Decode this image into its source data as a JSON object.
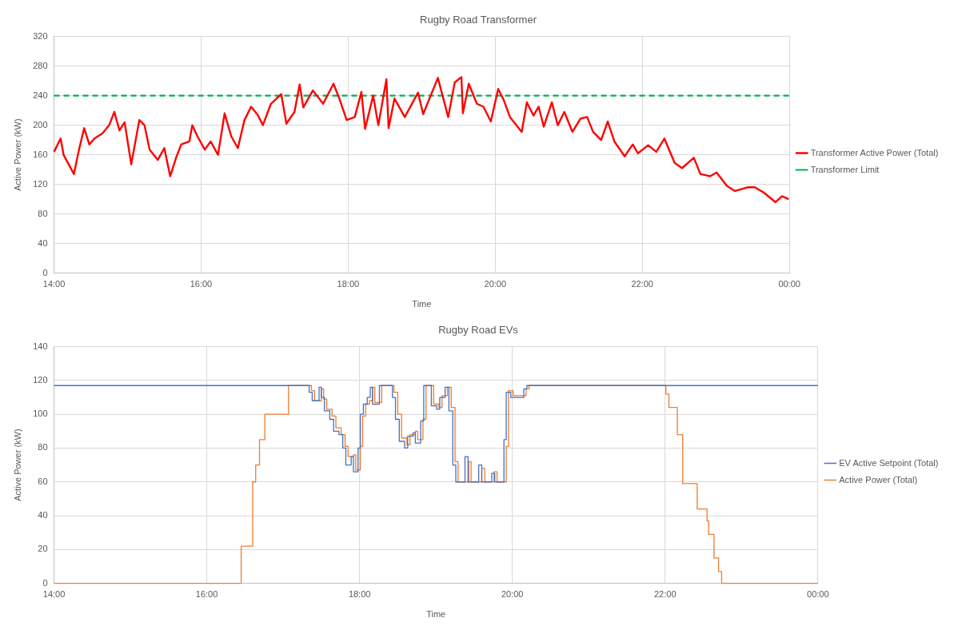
{
  "chart_data": [
    {
      "type": "line",
      "title": "Rugby Road Transformer",
      "xlabel": "Time",
      "ylabel": "Active Power (kW)",
      "xlim": [
        14,
        24
      ],
      "xticks": [
        {
          "value": 14,
          "label": "14:00"
        },
        {
          "value": 16,
          "label": "16:00"
        },
        {
          "value": 18,
          "label": "18:00"
        },
        {
          "value": 20,
          "label": "20:00"
        },
        {
          "value": 22,
          "label": "22:00"
        },
        {
          "value": 24,
          "label": "00:00"
        }
      ],
      "ylim": [
        0,
        320
      ],
      "yticks": [
        0,
        40,
        80,
        120,
        160,
        200,
        240,
        280,
        320
      ],
      "grid": true,
      "legend": "right",
      "marker": "none",
      "series": [
        {
          "name": "Transformer Active Power (Total)",
          "color": "#ff0000",
          "line_style": "solid",
          "x": [
            14.0,
            14.09,
            14.13,
            14.2,
            14.27,
            14.34,
            14.41,
            14.48,
            14.55,
            14.66,
            14.75,
            14.82,
            14.89,
            14.96,
            15.05,
            15.16,
            15.23,
            15.3,
            15.41,
            15.5,
            15.58,
            15.66,
            15.73,
            15.84,
            15.88,
            15.95,
            16.05,
            16.13,
            16.23,
            16.32,
            16.41,
            16.5,
            16.59,
            16.68,
            16.77,
            16.84,
            16.95,
            17.09,
            17.16,
            17.27,
            17.34,
            17.39,
            17.52,
            17.66,
            17.8,
            17.88,
            17.98,
            18.09,
            18.18,
            18.23,
            18.34,
            18.41,
            18.52,
            18.55,
            18.63,
            18.77,
            18.95,
            19.02,
            19.22,
            19.36,
            19.45,
            19.54,
            19.56,
            19.64,
            19.75,
            19.84,
            19.94,
            20.04,
            20.12,
            20.2,
            20.36,
            20.43,
            20.52,
            20.59,
            20.66,
            20.77,
            20.85,
            20.94,
            21.05,
            21.16,
            21.25,
            21.33,
            21.44,
            21.53,
            21.62,
            21.76,
            21.87,
            21.94,
            22.08,
            22.19,
            22.3,
            22.44,
            22.54,
            22.7,
            22.79,
            22.92,
            23.01,
            23.15,
            23.26,
            23.43,
            23.53,
            23.65,
            23.81,
            23.9,
            23.99
          ],
          "values": [
            164,
            182,
            160,
            147,
            134,
            167,
            196,
            174,
            182,
            189,
            200,
            218,
            193,
            204,
            147,
            207,
            200,
            167,
            153,
            169,
            131,
            156,
            174,
            178,
            200,
            185,
            167,
            178,
            160,
            216,
            185,
            169,
            207,
            225,
            214,
            200,
            229,
            242,
            202,
            218,
            255,
            224,
            247,
            229,
            256,
            236,
            207,
            211,
            245,
            195,
            240,
            200,
            262,
            196,
            236,
            211,
            244,
            215,
            264,
            211,
            258,
            265,
            216,
            256,
            229,
            225,
            205,
            249,
            233,
            211,
            191,
            231,
            213,
            225,
            198,
            231,
            200,
            218,
            191,
            209,
            211,
            191,
            180,
            205,
            178,
            158,
            174,
            162,
            173,
            164,
            182,
            149,
            142,
            156,
            134,
            131,
            136,
            118,
            111,
            116,
            116,
            109,
            96,
            104,
            100
          ]
        },
        {
          "name": "Transformer Limit",
          "color": "#00b050",
          "line_style": "dashed",
          "x": [
            14,
            24
          ],
          "values": [
            240,
            240
          ]
        }
      ]
    },
    {
      "type": "step",
      "title": "Rugby Road EVs",
      "xlabel": "Time",
      "ylabel": "Active Power (kW)",
      "xlim": [
        14,
        24
      ],
      "xticks": [
        {
          "value": 14,
          "label": "14:00"
        },
        {
          "value": 16,
          "label": "16:00"
        },
        {
          "value": 18,
          "label": "18:00"
        },
        {
          "value": 20,
          "label": "20:00"
        },
        {
          "value": 22,
          "label": "22:00"
        },
        {
          "value": 24,
          "label": "00:00"
        }
      ],
      "ylim": [
        0,
        140
      ],
      "yticks": [
        0,
        20,
        40,
        60,
        80,
        100,
        120,
        140
      ],
      "grid": true,
      "legend": "right",
      "marker": "none",
      "series": [
        {
          "name": "EV Active Setpoint (Total)",
          "color": "#4472c4",
          "line_style": "solid",
          "x": [
            14,
            17.34,
            17.38,
            17.47,
            17.5,
            17.54,
            17.61,
            17.66,
            17.73,
            17.78,
            17.82,
            17.89,
            17.92,
            17.98,
            18.01,
            18.05,
            18.1,
            18.14,
            18.17,
            18.26,
            18.43,
            18.47,
            18.52,
            18.59,
            18.63,
            18.7,
            18.73,
            18.8,
            18.84,
            18.94,
            19.01,
            19.05,
            19.12,
            19.17,
            19.22,
            19.26,
            19.38,
            19.42,
            19.56,
            19.6,
            19.73,
            19.77,
            19.89,
            19.92,
            19.98,
            20.15,
            20.19,
            24
          ],
          "values": [
            117,
            113,
            108,
            116,
            110,
            102,
            97,
            90,
            88,
            80,
            70,
            75,
            66,
            80,
            100,
            106,
            110,
            116,
            106,
            117,
            110,
            97,
            84,
            80,
            87,
            89,
            83,
            96,
            117,
            105,
            103,
            110,
            116,
            102,
            70,
            60,
            75,
            60,
            70,
            60,
            65,
            60,
            85,
            113,
            110,
            115,
            117,
            117
          ]
        },
        {
          "name": "Active Power (Total)",
          "color": "#ed7d31",
          "line_style": "solid",
          "x": [
            14,
            16.45,
            16.6,
            16.64,
            16.69,
            16.76,
            17.07,
            17.37,
            17.41,
            17.5,
            17.53,
            17.57,
            17.64,
            17.69,
            17.76,
            17.81,
            17.85,
            17.92,
            17.95,
            18.01,
            18.04,
            18.08,
            18.13,
            18.17,
            18.2,
            18.29,
            18.45,
            18.5,
            18.55,
            18.62,
            18.66,
            18.73,
            18.76,
            18.83,
            18.87,
            18.97,
            19.04,
            19.08,
            19.15,
            19.2,
            19.25,
            19.29,
            19.43,
            19.46,
            19.6,
            19.64,
            19.76,
            19.8,
            19.92,
            19.95,
            20.01,
            20.18,
            20.22,
            22.01,
            22.05,
            22.16,
            22.23,
            22.42,
            22.55,
            22.57,
            22.64,
            22.7,
            22.74,
            24
          ],
          "values": [
            0,
            22,
            60,
            70,
            85,
            100,
            117,
            114,
            108,
            115,
            109,
            103,
            99,
            92,
            88,
            81,
            75,
            76,
            67,
            81,
            99,
            106,
            108,
            116,
            107,
            117,
            113,
            100,
            86,
            82,
            88,
            90,
            85,
            97,
            117,
            106,
            104,
            111,
            116,
            104,
            72,
            60,
            72,
            60,
            68,
            60,
            66,
            60,
            81,
            114,
            111,
            115,
            117,
            112,
            104,
            88,
            59,
            44,
            37,
            29,
            15,
            7,
            0,
            0
          ]
        }
      ]
    }
  ]
}
